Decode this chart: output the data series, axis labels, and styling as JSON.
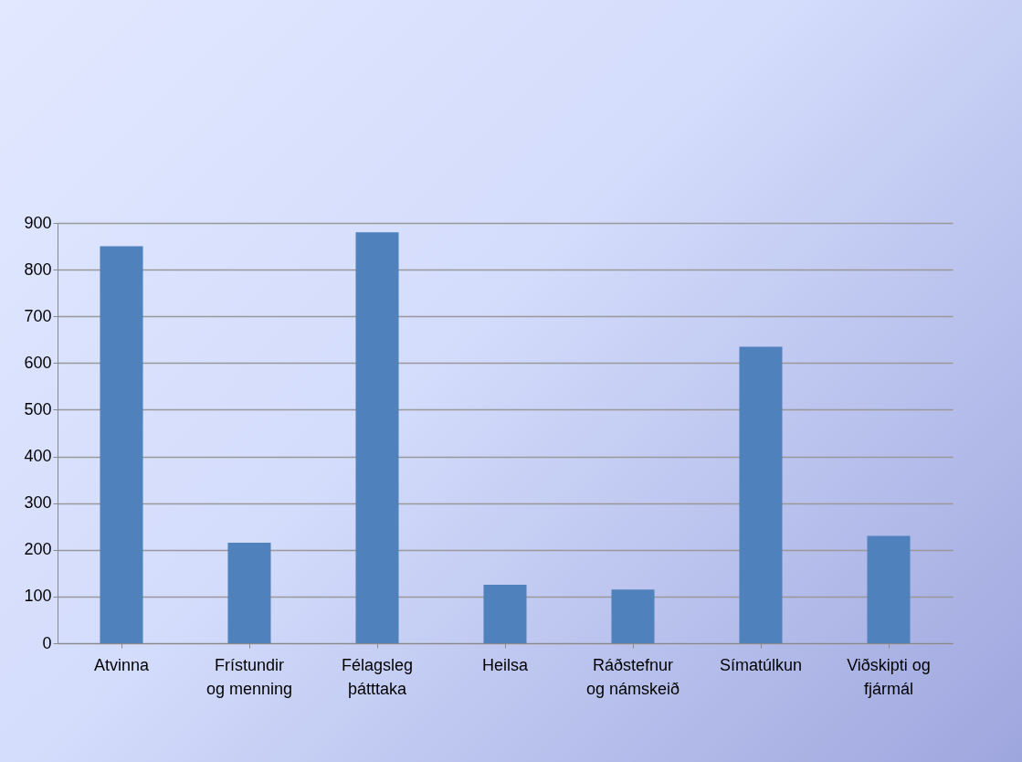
{
  "chart_data": {
    "type": "bar",
    "categories": [
      "Atvinna",
      "Frístundir og menning",
      "Félagsleg þátttaka",
      "Heilsa",
      "Ráðstefnur og námskeið",
      "Símatúlkun",
      "Viðskipti og fjármál"
    ],
    "values": [
      850,
      215,
      880,
      125,
      115,
      635,
      230
    ],
    "color": "#4f81bd",
    "ylim": [
      0,
      900
    ],
    "yticks": [
      0,
      100,
      200,
      300,
      400,
      500,
      600,
      700,
      800,
      900
    ],
    "grid": "y"
  }
}
